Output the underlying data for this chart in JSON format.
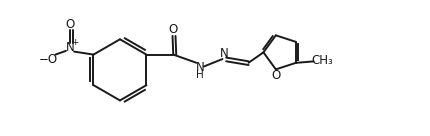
{
  "bg_color": "#ffffff",
  "line_color": "#1a1a1a",
  "line_width": 1.4,
  "font_size": 8.5,
  "figsize": [
    4.3,
    1.36
  ],
  "dpi": 100,
  "xlim": [
    0,
    11.5
  ],
  "ylim": [
    0.5,
    4.0
  ]
}
